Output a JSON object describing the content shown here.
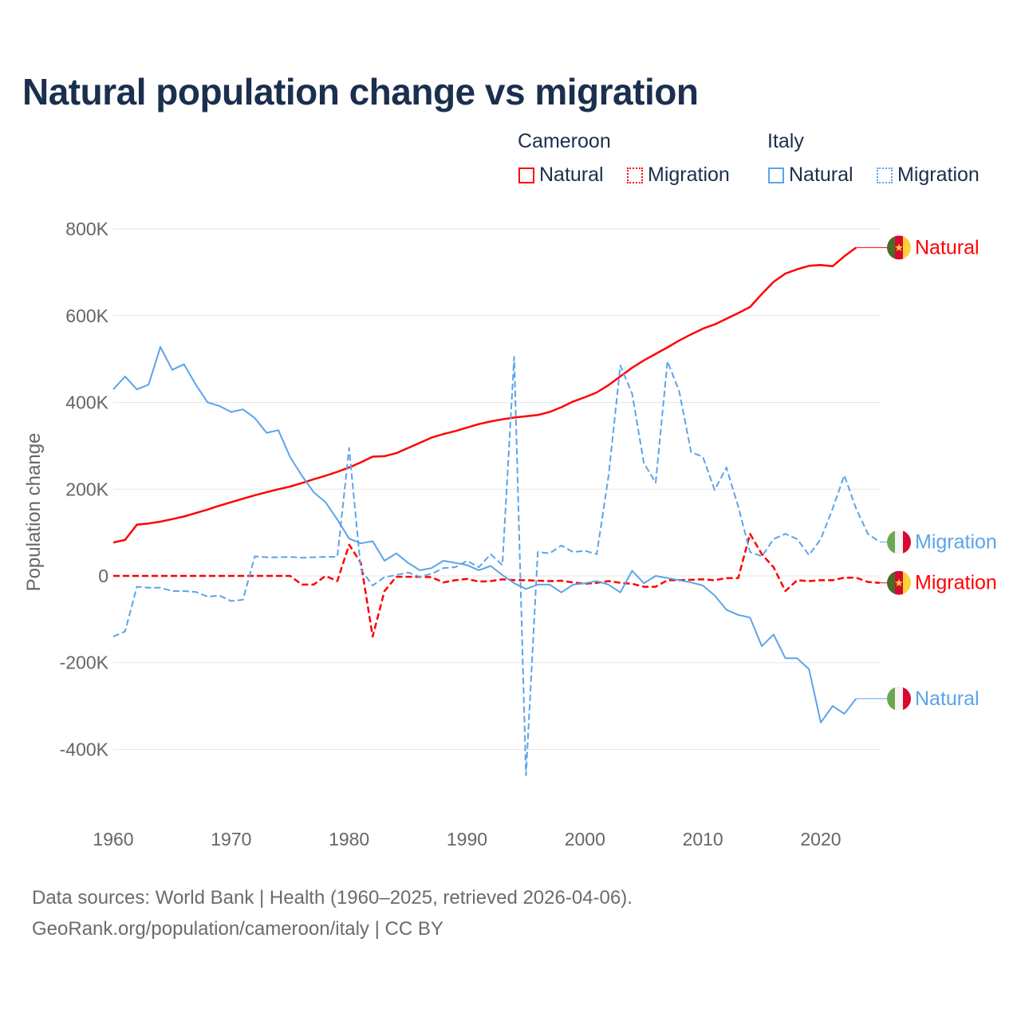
{
  "title": "Natural population change vs migration",
  "legend": {
    "groups": [
      {
        "name": "Cameroon",
        "items": [
          "Natural",
          "Migration"
        ],
        "color": "#ff0000"
      },
      {
        "name": "Italy",
        "items": [
          "Natural",
          "Migration"
        ],
        "color": "#5ba4ea"
      }
    ]
  },
  "footer": {
    "line1": "Data sources: World Bank | Health (1960–2025, retrieved 2026-04-06).",
    "line2": "GeoRank.org/population/cameroon/italy | CC BY"
  },
  "chart_data": {
    "type": "line",
    "title": "Natural population change vs migration",
    "ylabel": "Population change",
    "xlabel": "",
    "xlim": [
      1960,
      2025
    ],
    "ylim": [
      -400000,
      800000
    ],
    "x_ticks": [
      1960,
      1970,
      1980,
      1990,
      2000,
      2010,
      2020
    ],
    "y_ticks": [
      {
        "v": 800000,
        "label": "800K"
      },
      {
        "v": 600000,
        "label": "600K"
      },
      {
        "v": 400000,
        "label": "400K"
      },
      {
        "v": 200000,
        "label": "200K"
      },
      {
        "v": 0,
        "label": "0"
      },
      {
        "v": -200000,
        "label": "-200K"
      },
      {
        "v": -400000,
        "label": "-400K"
      }
    ],
    "grid": true,
    "legend_position": "top-right",
    "x_start": 1960,
    "series": [
      {
        "name": "Cameroon Natural",
        "label": "Natural",
        "country": "Cameroon",
        "color": "#ff0000",
        "dash": false,
        "values": [
          77,
          83,
          118,
          121,
          125,
          131,
          137,
          145,
          153,
          162,
          170,
          178,
          186,
          193,
          200,
          206,
          214,
          223,
          231,
          240,
          250,
          262,
          275,
          276,
          283,
          295,
          307,
          319,
          327,
          334,
          342,
          350,
          356,
          361,
          365,
          368,
          371,
          378,
          389,
          402,
          412,
          423,
          440,
          460,
          480,
          497,
          512,
          527,
          543,
          557,
          570,
          580,
          593,
          606,
          620,
          650,
          678,
          697,
          707,
          715,
          717,
          714,
          737,
          757
        ]
      },
      {
        "name": "Cameroon Migration",
        "label": "Migration",
        "country": "Cameroon",
        "color": "#ff0000",
        "dash": true,
        "values": [
          0,
          0,
          0,
          0,
          0,
          0,
          0,
          0,
          0,
          0,
          0,
          0,
          0,
          0,
          0,
          0,
          -20,
          -20,
          0,
          -12,
          72,
          30,
          -140,
          -35,
          -2,
          -2,
          -2,
          -3,
          -15,
          -10,
          -7,
          -13,
          -12,
          -8,
          -10,
          -10,
          -11,
          -12,
          -11,
          -15,
          -18,
          -16,
          -12,
          -16,
          -18,
          -25,
          -25,
          -10,
          -10,
          -9,
          -8,
          -10,
          -5,
          -5,
          97,
          50,
          20,
          -35,
          -10,
          -12,
          -10,
          -10,
          -4,
          -4,
          -14,
          -16
        ]
      },
      {
        "name": "Italy Natural",
        "label": "Natural",
        "country": "Italy",
        "color": "#5ba4ea",
        "dash": false,
        "values": [
          430,
          460,
          430,
          441,
          528,
          475,
          488,
          441,
          400,
          392,
          378,
          384,
          364,
          330,
          336,
          274,
          231,
          193,
          170,
          130,
          86,
          75,
          80,
          35,
          52,
          30,
          13,
          18,
          35,
          30,
          25,
          13,
          23,
          2,
          -17,
          -30,
          -20,
          -20,
          -38,
          -20,
          -17,
          -12,
          -20,
          -38,
          12,
          -17,
          0,
          -5,
          -10,
          -15,
          -22,
          -45,
          -78,
          -90,
          -96,
          -162,
          -135,
          -190,
          -190,
          -215,
          -338,
          -300,
          -318,
          -283
        ]
      },
      {
        "name": "Italy Migration",
        "label": "Migration",
        "country": "Italy",
        "color": "#5ba4ea",
        "dash": true,
        "values": [
          -140,
          -128,
          -25,
          -27,
          -27,
          -35,
          -35,
          -37,
          -48,
          -45,
          -58,
          -55,
          45,
          43,
          43,
          44,
          42,
          43,
          44,
          44,
          295,
          15,
          -22,
          -3,
          2,
          8,
          -2,
          5,
          18,
          20,
          35,
          20,
          50,
          25,
          505,
          -460,
          55,
          52,
          70,
          55,
          58,
          50,
          230,
          485,
          420,
          260,
          215,
          495,
          425,
          285,
          275,
          198,
          250,
          160,
          55,
          45,
          85,
          97,
          85,
          48,
          85,
          155,
          232,
          155,
          97,
          78
        ]
      }
    ],
    "value_unit": "thousands"
  }
}
